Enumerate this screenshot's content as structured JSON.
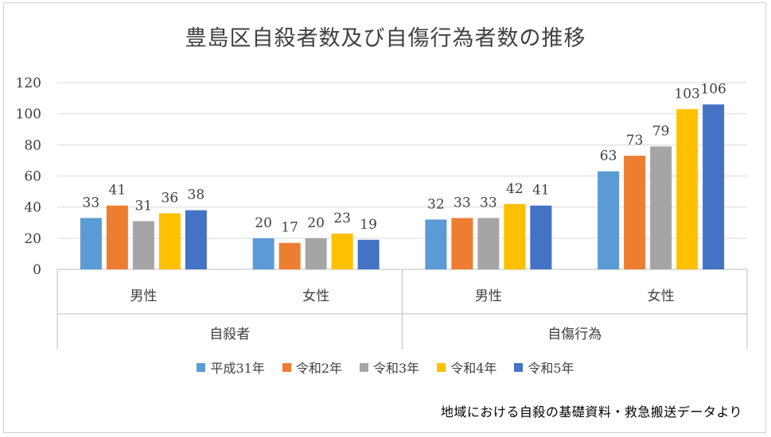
{
  "chart_data": {
    "type": "bar",
    "title": "豊島区自殺者数及び自傷行為者数の推移",
    "groups": [
      {
        "label": "自殺者",
        "categories": [
          "男性",
          "女性"
        ]
      },
      {
        "label": "自傷行為",
        "categories": [
          "男性",
          "女性"
        ]
      }
    ],
    "categories": [
      "男性",
      "女性",
      "男性",
      "女性"
    ],
    "series": [
      {
        "name": "平成31年",
        "color": "#5B9BD5",
        "values": [
          33,
          20,
          32,
          63
        ]
      },
      {
        "name": "令和2年",
        "color": "#ED7D31",
        "values": [
          41,
          17,
          33,
          73
        ]
      },
      {
        "name": "令和3年",
        "color": "#A5A5A5",
        "values": [
          31,
          20,
          33,
          79
        ]
      },
      {
        "name": "令和4年",
        "color": "#FFC000",
        "values": [
          36,
          23,
          42,
          103
        ]
      },
      {
        "name": "令和5年",
        "color": "#4472C4",
        "values": [
          38,
          19,
          41,
          106
        ]
      }
    ],
    "ylim": [
      0,
      120
    ],
    "yticks": [
      0,
      20,
      40,
      60,
      80,
      100,
      120
    ],
    "grid": true,
    "legend": "bottom",
    "data_labels": true
  },
  "source_note": "地域における自殺の基礎資料・救急搬送データより"
}
